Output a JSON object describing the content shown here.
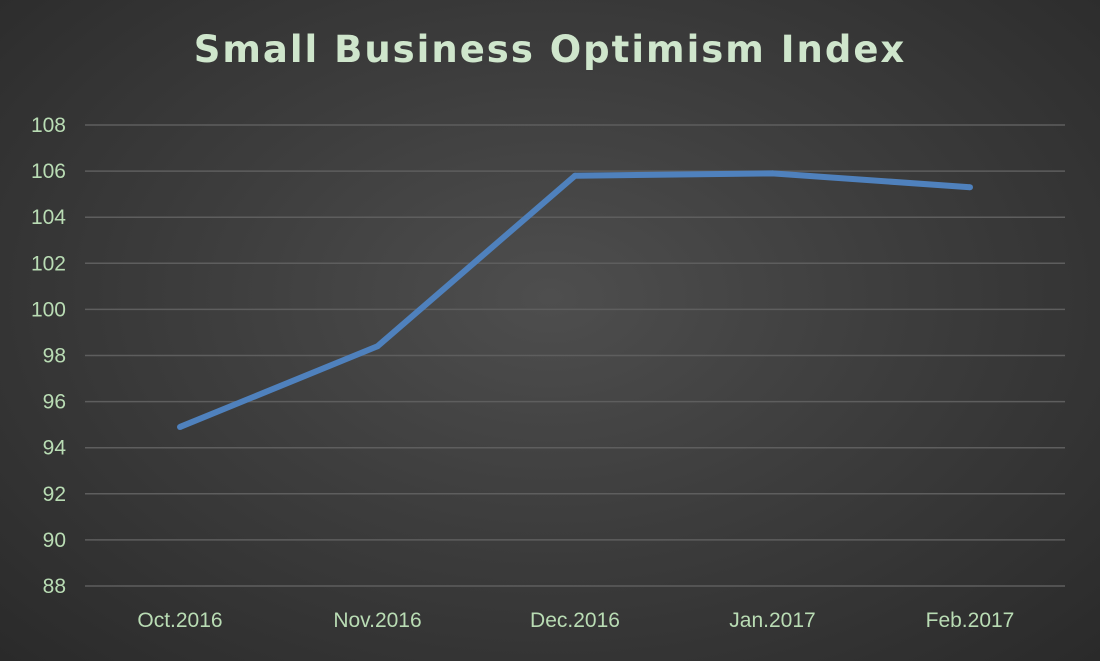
{
  "chart_data": {
    "type": "line",
    "title": "Small Business Optimism Index",
    "xlabel": "",
    "ylabel": "",
    "categories": [
      "Oct.2016",
      "Nov.2016",
      "Dec.2016",
      "Jan.2017",
      "Feb.2017"
    ],
    "series": [
      {
        "values": [
          94.9,
          98.4,
          105.8,
          105.9,
          105.3
        ]
      }
    ],
    "ylim": [
      88,
      108
    ],
    "yticks": [
      88,
      90,
      92,
      94,
      96,
      98,
      100,
      102,
      104,
      106,
      108
    ],
    "grid": true,
    "legend": "none",
    "colors": {
      "line": "#4f81bd",
      "grid": "#5e5e5e",
      "tick_text": "#b9dcb4",
      "title_text": "#cfe6cc"
    }
  }
}
